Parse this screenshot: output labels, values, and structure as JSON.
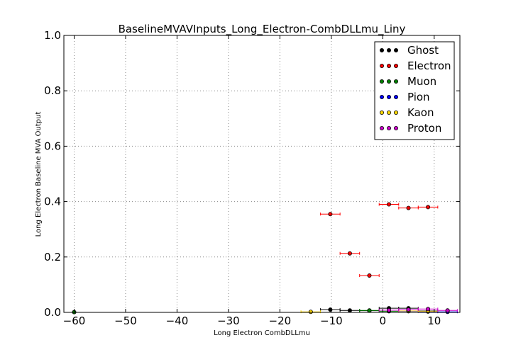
{
  "chart_data": {
    "type": "scatter",
    "title": "BaselineMVAVInputs_Long_Electron-CombDLLmu_Liny",
    "xlabel": "Long Electron CombDLLmu",
    "ylabel": "Long Electron Baseline MVA Output",
    "xlim": [
      -62,
      15
    ],
    "ylim": [
      0.0,
      1.0
    ],
    "xticks": [
      -60,
      -50,
      -40,
      -30,
      -20,
      -10,
      0,
      10
    ],
    "yticks": [
      0.0,
      0.2,
      0.4,
      0.6,
      0.8,
      1.0
    ],
    "xtick_labels": [
      "−60",
      "−50",
      "−40",
      "−30",
      "−20",
      "−10",
      "0",
      "10"
    ],
    "ytick_labels": [
      "0.0",
      "0.2",
      "0.4",
      "0.6",
      "0.8",
      "1.0"
    ],
    "grid": true,
    "legend_position": "top-right",
    "series": [
      {
        "name": "Ghost",
        "color": "#000000",
        "points": [
          {
            "x": -10.2,
            "y": 0.01,
            "xerr": 1.9
          },
          {
            "x": -6.4,
            "y": 0.007,
            "xerr": 1.9
          },
          {
            "x": -2.6,
            "y": 0.006,
            "xerr": 1.9
          },
          {
            "x": 1.2,
            "y": 0.015,
            "xerr": 1.9
          },
          {
            "x": 5.0,
            "y": 0.015,
            "xerr": 1.9
          },
          {
            "x": 8.8,
            "y": 0.005,
            "xerr": 1.9
          }
        ]
      },
      {
        "name": "Electron",
        "color": "#ff0000",
        "points": [
          {
            "x": -10.2,
            "y": 0.355,
            "xerr": 1.9
          },
          {
            "x": -6.4,
            "y": 0.213,
            "xerr": 1.9
          },
          {
            "x": -2.6,
            "y": 0.133,
            "xerr": 1.9
          },
          {
            "x": 1.2,
            "y": 0.39,
            "xerr": 1.9
          },
          {
            "x": 5.0,
            "y": 0.377,
            "xerr": 1.9
          },
          {
            "x": 8.8,
            "y": 0.38,
            "xerr": 1.9
          }
        ]
      },
      {
        "name": "Muon",
        "color": "#008000",
        "points": [
          {
            "x": -60.0,
            "y": 0.001,
            "xerr": 0
          },
          {
            "x": -2.6,
            "y": 0.007,
            "xerr": 1.9
          },
          {
            "x": 1.2,
            "y": 0.004,
            "xerr": 1.9
          }
        ]
      },
      {
        "name": "Pion",
        "color": "#0000ff",
        "points": [
          {
            "x": 5.0,
            "y": 0.004,
            "xerr": 1.9
          },
          {
            "x": 8.8,
            "y": 0.003,
            "xerr": 1.9
          },
          {
            "x": 12.6,
            "y": 0.002,
            "xerr": 1.9
          }
        ]
      },
      {
        "name": "Kaon",
        "color": "#ffd700",
        "points": [
          {
            "x": -14.0,
            "y": 0.002,
            "xerr": 1.9
          },
          {
            "x": 5.0,
            "y": 0.005,
            "xerr": 1.9
          },
          {
            "x": 8.8,
            "y": 0.004,
            "xerr": 1.9
          }
        ]
      },
      {
        "name": "Proton",
        "color": "#cc00cc",
        "points": [
          {
            "x": 1.2,
            "y": 0.008,
            "xerr": 1.9
          },
          {
            "x": 5.0,
            "y": 0.01,
            "xerr": 1.9
          },
          {
            "x": 8.8,
            "y": 0.012,
            "xerr": 1.9
          },
          {
            "x": 12.6,
            "y": 0.007,
            "xerr": 1.9
          }
        ]
      }
    ]
  }
}
